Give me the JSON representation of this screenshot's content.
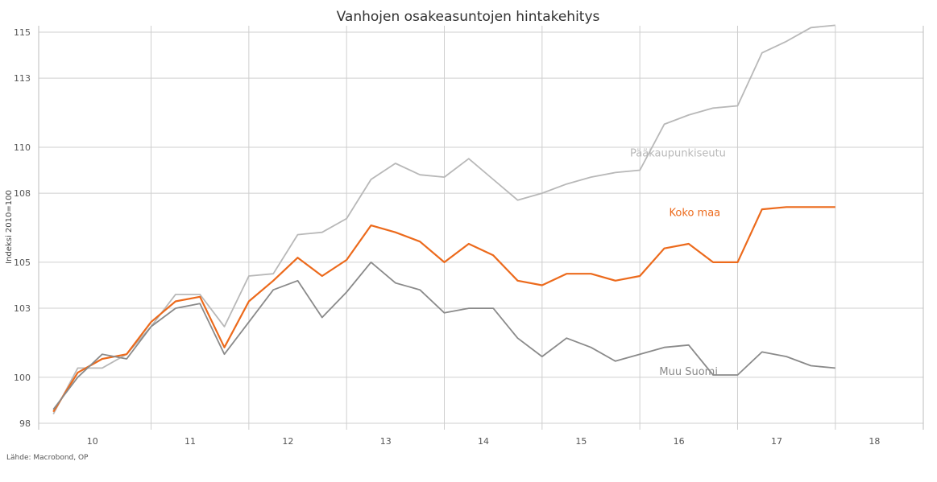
{
  "chart_data": {
    "type": "line",
    "title": "Vanhojen osakeasuntojen hintakehitys",
    "ylabel": "Indeksi 2010=100",
    "source": "Lähde: Macrobond, OP",
    "ylim": [
      98,
      115
    ],
    "yticks": [
      98,
      100,
      103,
      105,
      108,
      110,
      113,
      115
    ],
    "xlim": [
      2009.85,
      2018.9
    ],
    "xticks": [
      {
        "label": "10",
        "value": 2010.4
      },
      {
        "label": "11",
        "value": 2011.4
      },
      {
        "label": "12",
        "value": 2012.4
      },
      {
        "label": "13",
        "value": 2013.4
      },
      {
        "label": "14",
        "value": 2014.4
      },
      {
        "label": "15",
        "value": 2015.4
      },
      {
        "label": "16",
        "value": 2016.4
      },
      {
        "label": "17",
        "value": 2017.4
      },
      {
        "label": "18",
        "value": 2018.4
      }
    ],
    "year_boundaries": [
      2011.0,
      2012.0,
      2013.0,
      2014.0,
      2015.0,
      2016.0,
      2017.0,
      2018.0
    ],
    "grid": true,
    "x": [
      2010.0,
      2010.25,
      2010.5,
      2010.75,
      2011.0,
      2011.25,
      2011.5,
      2011.75,
      2012.0,
      2012.25,
      2012.5,
      2012.75,
      2013.0,
      2013.25,
      2013.5,
      2013.75,
      2014.0,
      2014.25,
      2014.5,
      2014.75,
      2015.0,
      2015.25,
      2015.5,
      2015.75,
      2016.0,
      2016.25,
      2016.5,
      2016.75,
      2017.0,
      2017.25,
      2017.5,
      2017.75,
      2018.0
    ],
    "series": [
      {
        "name": "Pääkaupunkiseutu",
        "color": "#b8b8b8",
        "values": [
          98.4,
          100.4,
          100.4,
          101.0,
          102.2,
          103.6,
          103.6,
          102.2,
          104.4,
          104.5,
          106.2,
          106.3,
          106.9,
          108.6,
          109.3,
          108.8,
          108.7,
          109.5,
          108.6,
          107.7,
          108.0,
          108.4,
          108.7,
          108.9,
          109.0,
          111.0,
          111.4,
          111.7,
          111.8,
          114.1,
          114.6,
          115.2,
          115.3
        ]
      },
      {
        "name": "Koko maa",
        "color": "#ec6a1c",
        "values": [
          98.5,
          100.2,
          100.8,
          101.0,
          102.4,
          103.3,
          103.5,
          101.3,
          103.3,
          104.2,
          105.2,
          104.4,
          105.1,
          106.6,
          106.3,
          105.9,
          105.0,
          105.8,
          105.3,
          104.2,
          104.0,
          104.5,
          104.5,
          104.2,
          104.4,
          105.6,
          105.8,
          105.0,
          105.0,
          107.3,
          107.4,
          107.4,
          107.4
        ]
      },
      {
        "name": "Muu Suomi",
        "color": "#8a8a8a",
        "values": [
          98.6,
          100.0,
          101.0,
          100.8,
          102.2,
          103.0,
          103.2,
          101.0,
          102.4,
          103.8,
          104.2,
          102.6,
          103.7,
          105.0,
          104.1,
          103.8,
          102.8,
          103.0,
          103.0,
          101.7,
          100.9,
          101.7,
          101.3,
          100.7,
          101.0,
          101.3,
          101.4,
          100.1,
          100.1,
          101.1,
          100.9,
          100.5,
          100.4
        ]
      }
    ],
    "annotations": [
      {
        "text": "Pääkaupunkiseutu",
        "series": 0,
        "x": 2015.9,
        "y": 109.6
      },
      {
        "text": "Koko maa",
        "series": 1,
        "x": 2016.3,
        "y": 107.0
      },
      {
        "text": "Muu Suomi",
        "series": 2,
        "x": 2016.2,
        "y": 100.1
      }
    ]
  }
}
